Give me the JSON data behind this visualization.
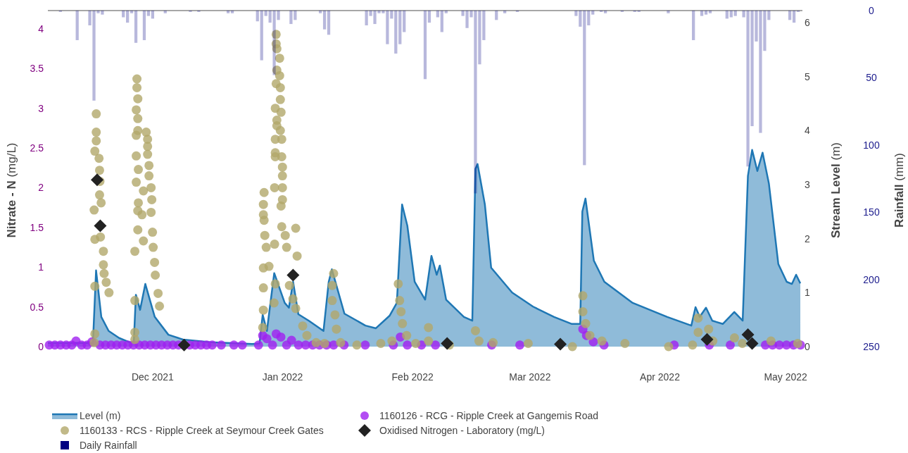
{
  "chart_data": {
    "type": "scatter",
    "ylabel": "Nitrate - N (mg/L)",
    "y2label": "Stream Level (m)",
    "y3label": "Rainfall (mm)",
    "xlim": [
      "2021-11-06",
      "2022-05-05"
    ],
    "xticks": [
      {
        "value": "2021-12-01",
        "label": "Dec 2021"
      },
      {
        "value": "2022-01-01",
        "label": "Jan 2022"
      },
      {
        "value": "2022-02-01",
        "label": "Feb 2022"
      },
      {
        "value": "2022-03-01",
        "label": "Mar 2022"
      },
      {
        "value": "2022-04-01",
        "label": "Apr 2022"
      },
      {
        "value": "2022-05-01",
        "label": "May 2022"
      }
    ],
    "ylim": [
      0,
      4.23
    ],
    "yticks": [
      0,
      0.5,
      1,
      1.5,
      2,
      2.5,
      3,
      3.5,
      4
    ],
    "y2lim": [
      0,
      6.22
    ],
    "y2ticks": [
      0,
      1,
      2,
      3,
      4,
      5,
      6
    ],
    "y3lim": [
      250,
      0
    ],
    "y3ticks": [
      0,
      50,
      100,
      150,
      200,
      250
    ],
    "legend": "bottom",
    "series": [
      {
        "name": "Level (m)",
        "type": "area",
        "axis": "y2",
        "color": "#1f77b4",
        "x": [
          "2021-11-06T00:00",
          "2021-11-16T18:00",
          "2021-11-17T12:00",
          "2021-11-18T18:00",
          "2021-11-20T12:00",
          "2021-11-23T00:00",
          "2021-11-25T12:00",
          "2021-11-26T12:00",
          "2021-11-27T00:00",
          "2021-11-28T00:00",
          "2021-11-29T06:00",
          "2021-12-01T12:00",
          "2021-12-04T18:00",
          "2021-12-08T06:00",
          "2021-12-14T18:00",
          "2021-12-24T18:00",
          "2021-12-26T12:00",
          "2021-12-27T06:00",
          "2021-12-28T06:00",
          "2021-12-30T00:00",
          "2022-01-01T12:00",
          "2022-01-02T12:00",
          "2022-01-03T12:00",
          "2022-01-04T18:00",
          "2022-01-07T06:00",
          "2022-01-10T18:00",
          "2022-01-12T00:00",
          "2022-01-12T18:00",
          "2022-01-15T18:00",
          "2022-01-20T18:00",
          "2022-01-23T06:00",
          "2022-01-26T12:00",
          "2022-01-28T06:00",
          "2022-01-29T12:00",
          "2022-01-30T18:00",
          "2022-02-01T12:00",
          "2022-02-04T00:00",
          "2022-02-05T12:00",
          "2022-02-06T18:00",
          "2022-02-07T12:00",
          "2022-02-09T00:00",
          "2022-02-13T06:00",
          "2022-02-15T06:00",
          "2022-02-16T00:00",
          "2022-02-16T12:00",
          "2022-02-18T06:00",
          "2022-02-19T18:00",
          "2022-02-24T18:00",
          "2022-03-01T18:00",
          "2022-03-06T18:00",
          "2022-03-11T00:00",
          "2022-03-13T00:00",
          "2022-03-13T12:00",
          "2022-03-14T06:00",
          "2022-03-16T06:00",
          "2022-03-18T18:00",
          "2022-03-25T12:00",
          "2022-04-02T18:00",
          "2022-04-08T12:00",
          "2022-04-09T12:00",
          "2022-04-10T12:00",
          "2022-04-12T00:00",
          "2022-04-13T12:00",
          "2022-04-16T00:00",
          "2022-04-18T18:00",
          "2022-04-20T18:00",
          "2022-04-22T00:00",
          "2022-04-23T00:00",
          "2022-04-24T06:00",
          "2022-04-25T12:00",
          "2022-04-27T00:00",
          "2022-04-29T06:00",
          "2022-05-01T06:00",
          "2022-05-02T12:00",
          "2022-05-03T12:00",
          "2022-05-04T12:00"
        ],
        "values": [
          0.07,
          0.07,
          1.41,
          0.55,
          0.29,
          0.16,
          0.08,
          0.08,
          0.96,
          0.68,
          1.16,
          0.55,
          0.22,
          0.13,
          0.08,
          0.05,
          0.06,
          0.59,
          0.29,
          1.36,
          0.81,
          0.72,
          1.2,
          0.6,
          0.48,
          0.29,
          1.2,
          1.43,
          0.61,
          0.39,
          0.34,
          0.57,
          0.81,
          2.63,
          2.24,
          1.2,
          0.87,
          1.68,
          1.33,
          1.5,
          0.87,
          0.55,
          0.48,
          3.29,
          3.38,
          2.63,
          1.46,
          1.0,
          0.74,
          0.55,
          0.42,
          0.42,
          2.5,
          2.74,
          1.59,
          1.2,
          0.81,
          0.55,
          0.39,
          0.73,
          0.55,
          0.72,
          0.48,
          0.42,
          0.64,
          0.48,
          3.16,
          3.64,
          3.25,
          3.59,
          3.02,
          1.53,
          1.2,
          1.16,
          1.33,
          1.17
        ]
      },
      {
        "name": "1160126 - RCG - Ripple Creek at Gangemis Road",
        "marker": "circle",
        "color": "#a020f0",
        "x": [
          "2021-11-06T08:00",
          "2021-11-07T16:00",
          "2021-11-09T00:00",
          "2021-11-10T09:00",
          "2021-11-11T17:00",
          "2021-11-12T17:00",
          "2021-11-14T01:00",
          "2021-11-15T09:00",
          "2021-11-16T12:00",
          "2021-11-18T10:00",
          "2021-11-19T18:00",
          "2021-11-21T02:00",
          "2021-11-22T10:00",
          "2021-11-23T18:00",
          "2021-11-25T02:00",
          "2021-11-26T10:00",
          "2021-11-27T19:00",
          "2021-11-29T03:00",
          "2021-11-30T11:00",
          "2021-12-01T19:00",
          "2021-12-03T03:00",
          "2021-12-04T12:00",
          "2021-12-05T20:00",
          "2021-12-07T04:00",
          "2021-12-09T20:00",
          "2021-12-11T04:00",
          "2021-12-12T12:00",
          "2021-12-13T21:00",
          "2021-12-15T05:00",
          "2021-12-17T09:00",
          "2021-12-20T09:00",
          "2021-12-22T09:00",
          "2021-12-26T06:00",
          "2021-12-27T06:00",
          "2021-12-28T06:00",
          "2021-12-29T14:00",
          "2021-12-30T11:00",
          "2021-12-31T14:00",
          "2022-01-01T23:00",
          "2022-01-03T03:00",
          "2022-01-04T19:00",
          "2022-01-06T12:00",
          "2022-01-08T04:00",
          "2022-01-09T19:00",
          "2022-01-11T12:00",
          "2022-01-13T04:00",
          "2022-01-15T16:00",
          "2022-01-20T17:00",
          "2022-01-27T10:00",
          "2022-01-29T02:00",
          "2022-01-30T18:00",
          "2022-02-03T03:00",
          "2022-02-06T11:00",
          "2022-02-19T21:00",
          "2022-02-26T14:00",
          "2022-03-13T15:00",
          "2022-03-14T12:00",
          "2022-03-16T03:00",
          "2022-03-18T16:00",
          "2022-04-04T10:00",
          "2022-04-12T19:00",
          "2022-04-17T19:00",
          "2022-04-26T04:00",
          "2022-04-27T21:00",
          "2022-04-29T12:00",
          "2022-05-01T05:00",
          "2022-05-02T21:00",
          "2022-05-04T13:00"
        ],
        "values": [
          0.02,
          0.02,
          0.02,
          0.02,
          0.02,
          0.07,
          0.02,
          0.02,
          0.06,
          0.02,
          0.02,
          0.02,
          0.02,
          0.02,
          0.02,
          0.02,
          0.02,
          0.02,
          0.02,
          0.02,
          0.02,
          0.02,
          0.02,
          0.02,
          0.02,
          0.02,
          0.02,
          0.02,
          0.02,
          0.02,
          0.02,
          0.02,
          0.02,
          0.14,
          0.1,
          0.02,
          0.16,
          0.12,
          0.02,
          0.08,
          0.02,
          0.02,
          0.02,
          0.02,
          0.02,
          0.02,
          0.02,
          0.02,
          0.02,
          0.12,
          0.02,
          0.02,
          0.02,
          0.02,
          0.02,
          0.22,
          0.14,
          0.06,
          0.02,
          0.02,
          0.02,
          0.02,
          0.02,
          0.02,
          0.02,
          0.02,
          0.02,
          0.02
        ]
      },
      {
        "name": "1160133 - RCS - Ripple Creek at Seymour Creek Gates",
        "marker": "circle",
        "color": "#b2a76a",
        "x": [
          "2021-11-17T13:00",
          "2021-11-17T13:00",
          "2021-11-17T13:00",
          "2021-11-17T05:00",
          "2021-11-18T05:00",
          "2021-11-18T08:00",
          "2021-11-18T10:00",
          "2021-11-18T08:00",
          "2021-11-18T17:00",
          "2021-11-17T01:00",
          "2021-11-18T13:00",
          "2021-11-17T05:00",
          "2021-11-19T06:00",
          "2021-11-19T06:00",
          "2021-11-19T10:00",
          "2021-11-19T22:00",
          "2021-11-20T14:00",
          "2021-11-17T05:00",
          "2021-11-17T05:00",
          "2021-11-17T01:00",
          "2021-11-27T06:00",
          "2021-11-27T06:00",
          "2021-11-27T11:00",
          "2021-11-27T02:00",
          "2021-11-27T11:00",
          "2021-11-27T11:00",
          "2021-11-27T02:00",
          "2021-11-29T11:00",
          "2021-11-29T19:00",
          "2021-11-27T02:00",
          "2021-11-29T19:00",
          "2021-11-29T19:00",
          "2021-11-27T14:00",
          "2021-11-30T03:00",
          "2021-11-27T02:00",
          "2021-11-30T03:00",
          "2021-11-28T19:00",
          "2021-11-30T15:00",
          "2021-11-27T14:00",
          "2021-11-30T19:00",
          "2021-11-27T11:00",
          "2021-11-28T11:00",
          "2021-11-30T15:00",
          "2021-11-27T11:00",
          "2021-11-28T19:00",
          "2021-11-26T18:00",
          "2021-11-30T23:00",
          "2021-12-01T03:00",
          "2021-12-01T11:00",
          "2021-12-01T15:00",
          "2021-12-02T07:00",
          "2021-12-02T15:00",
          "2021-11-26T18:00",
          "2021-11-26T18:00",
          "2021-11-26T18:00",
          "2021-12-30T11:00",
          "2021-12-30T11:00",
          "2021-12-30T15:00",
          "2021-12-31T07:00",
          "2021-12-30T15:00",
          "2021-12-31T07:00",
          "2021-12-30T11:00",
          "2021-12-31T11:00",
          "2021-12-31T11:00",
          "2021-12-30T06:00",
          "2021-12-31T15:00",
          "2021-12-30T15:00",
          "2021-12-30T15:00",
          "2021-12-31T11:00",
          "2021-12-30T06:00",
          "2021-12-31T19:00",
          "2021-12-30T06:00",
          "2021-12-30T06:00",
          "2021-12-31T19:00",
          "2021-12-31T23:00",
          "2021-12-31T23:00",
          "2021-12-31T23:00",
          "2021-12-30T02:00",
          "2021-12-27T14:00",
          "2021-12-27T10:00",
          "2021-12-31T23:00",
          "2021-12-27T10:00",
          "2021-12-27T14:00",
          "2021-12-31T15:00",
          "2021-12-31T19:00",
          "2022-01-01T15:00",
          "2022-01-04T03:00",
          "2021-12-27T18:00",
          "2021-12-28T02:00",
          "2021-12-30T02:00",
          "2021-12-27T10:00",
          "2021-12-28T18:00",
          "2022-01-01T23:00",
          "2022-01-04T11:00",
          "2022-01-02T15:00",
          "2021-12-30T06:00",
          "2021-12-27T10:00",
          "2022-01-03T11:00",
          "2022-01-04T03:00",
          "2021-12-29T23:00",
          "2021-12-27T10:00",
          "2021-12-27T06:00",
          "2022-01-05T19:00",
          "2022-01-06T19:00",
          "2022-01-09T00:00",
          "2022-01-11T00:00",
          "2022-01-13T04:00",
          "2022-01-12T20:00",
          "2022-01-12T20:00",
          "2022-01-13T12:00",
          "2022-01-13T20:00",
          "2022-01-14T20:00",
          "2022-01-18T17:00",
          "2022-01-24T10:00",
          "2022-01-27T02:00",
          "2022-01-28T14:00",
          "2022-01-28T22:00",
          "2022-01-29T06:00",
          "2022-01-29T14:00",
          "2022-01-30T14:00",
          "2022-02-01T18:00",
          "2022-02-04T19:00",
          "2022-02-04T19:00",
          "2022-02-09T19:00",
          "2022-02-16T00:00",
          "2022-02-16T20:00",
          "2022-02-20T05:00",
          "2022-02-28T14:00",
          "2022-03-11T03:00",
          "2022-03-13T15:00",
          "2022-03-13T15:00",
          "2022-03-14T07:00",
          "2022-03-15T07:00",
          "2022-03-18T04:00",
          "2022-03-23T16:00",
          "2022-04-03T02:00",
          "2022-04-08T19:00",
          "2022-04-10T03:00",
          "2022-04-10T03:00",
          "2022-04-12T15:00",
          "2022-04-13T15:00",
          "2022-04-18T19:00",
          "2022-04-20T16:00",
          "2022-04-27T12:00",
          "2022-05-03T21:00"
        ],
        "values": [
          2.93,
          2.7,
          2.59,
          2.46,
          2.37,
          2.22,
          2.08,
          1.91,
          1.81,
          1.72,
          1.38,
          1.35,
          1.2,
          1.03,
          0.92,
          0.81,
          0.68,
          0.76,
          0.16,
          0.05,
          3.37,
          3.26,
          3.12,
          2.98,
          2.87,
          2.72,
          2.66,
          2.7,
          2.61,
          2.4,
          2.52,
          2.42,
          2.23,
          2.28,
          2.07,
          2.15,
          1.96,
          2.0,
          1.81,
          1.85,
          1.71,
          1.66,
          1.69,
          1.47,
          1.33,
          1.2,
          1.44,
          1.25,
          1.06,
          0.9,
          0.67,
          0.51,
          0.58,
          0.18,
          0.09,
          3.93,
          3.81,
          3.75,
          3.63,
          3.48,
          3.41,
          3.31,
          3.26,
          3.11,
          3.0,
          2.95,
          2.85,
          2.78,
          2.72,
          2.61,
          2.61,
          2.44,
          2.39,
          2.39,
          2.26,
          2.15,
          2.0,
          2.0,
          1.94,
          1.79,
          1.85,
          1.66,
          1.59,
          1.77,
          1.51,
          1.4,
          1.49,
          1.4,
          1.25,
          1.29,
          0.99,
          1.01,
          1.25,
          1.14,
          0.77,
          0.79,
          0.74,
          0.6,
          0.48,
          0.55,
          0.46,
          0.24,
          0.26,
          0.14,
          0.05,
          0.04,
          0.92,
          0.77,
          0.58,
          0.4,
          0.22,
          0.05,
          0.02,
          0.04,
          0.07,
          0.79,
          0.58,
          0.44,
          0.29,
          0.14,
          0.04,
          0.24,
          0.07,
          0.02,
          0.2,
          0.07,
          0.05,
          0.04,
          0.0,
          0.64,
          0.44,
          0.29,
          0.14,
          0.07,
          0.04,
          0.0,
          0.02,
          0.36,
          0.18,
          0.22,
          0.07,
          0.11,
          0.04,
          0.07,
          0.04
        ]
      },
      {
        "name": "Oxidised Nitrogen - Laboratory (mg/L)",
        "marker": "diamond",
        "color": "#222222",
        "x": [
          "2021-11-17T18:00",
          "2021-11-18T12:00",
          "2021-12-08T12:00",
          "2022-01-03T12:00",
          "2022-02-09T06:00",
          "2022-03-08T06:00",
          "2022-04-12T06:00",
          "2022-04-22T00:00",
          "2022-04-23T00:00"
        ],
        "values": [
          2.1,
          1.52,
          0.02,
          0.9,
          0.04,
          0.03,
          0.09,
          0.15,
          0.04
        ]
      },
      {
        "name": "Daily Rainfall",
        "type": "bar",
        "axis": "y3",
        "color": "#000080",
        "x": [
          "2021-11-09",
          "2021-11-13",
          "2021-11-16",
          "2021-11-17",
          "2021-11-18",
          "2021-11-19",
          "2021-11-24",
          "2021-11-25",
          "2021-11-26",
          "2021-11-27",
          "2021-11-29",
          "2021-11-30",
          "2021-12-01",
          "2021-12-04",
          "2021-12-10",
          "2021-12-12",
          "2021-12-19",
          "2021-12-20",
          "2021-12-26",
          "2021-12-27",
          "2021-12-28",
          "2021-12-29",
          "2021-12-30",
          "2021-12-31",
          "2022-01-03",
          "2022-01-04",
          "2022-01-10",
          "2022-01-11",
          "2022-01-12",
          "2022-01-21",
          "2022-01-22",
          "2022-01-23",
          "2022-01-24",
          "2022-01-25",
          "2022-01-26",
          "2022-01-27",
          "2022-01-28",
          "2022-01-29",
          "2022-01-30",
          "2022-02-04",
          "2022-02-05",
          "2022-02-07",
          "2022-02-08",
          "2022-02-09",
          "2022-02-13",
          "2022-02-14",
          "2022-02-15",
          "2022-02-16",
          "2022-02-17",
          "2022-02-18",
          "2022-02-21",
          "2022-02-23",
          "2022-02-26",
          "2022-03-12",
          "2022-03-13",
          "2022-03-14",
          "2022-03-15",
          "2022-03-16",
          "2022-03-18",
          "2022-03-19",
          "2022-03-23",
          "2022-03-26",
          "2022-03-27",
          "2022-04-03",
          "2022-04-09",
          "2022-04-11",
          "2022-04-12",
          "2022-04-13",
          "2022-04-17",
          "2022-04-18",
          "2022-04-19",
          "2022-04-21",
          "2022-04-22",
          "2022-04-23",
          "2022-04-24",
          "2022-04-25",
          "2022-04-26",
          "2022-04-27",
          "2022-05-02",
          "2022-05-03",
          "2022-05-04"
        ],
        "values": [
          1,
          22,
          11,
          67,
          2,
          3,
          5,
          9,
          2,
          24,
          22,
          4,
          6,
          2,
          1,
          1,
          2,
          2,
          8,
          37,
          4,
          9,
          48,
          7,
          10,
          7,
          2,
          14,
          18,
          11,
          4,
          10,
          2,
          2,
          25,
          6,
          32,
          25,
          16,
          51,
          9,
          5,
          16,
          2,
          4,
          13,
          5,
          136,
          40,
          22,
          7,
          2,
          1,
          4,
          12,
          115,
          11,
          3,
          1,
          2,
          1,
          1,
          1,
          2,
          22,
          4,
          3,
          2,
          6,
          5,
          4,
          5,
          116,
          86,
          23,
          91,
          30,
          7,
          7,
          9,
          1
        ]
      }
    ]
  }
}
